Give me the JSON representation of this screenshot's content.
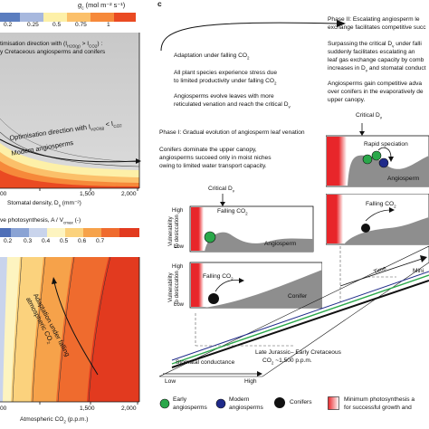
{
  "panel_a": {
    "colorbar_label": "g",
    "colorbar_sub": "c",
    "colorbar_unit": " (mol m⁻² s⁻¹)",
    "colorbar_ticks": [
      "0.2",
      "0.25",
      "0.5",
      "0.75",
      "1"
    ],
    "colors": [
      "#5b7dbf",
      "#a7b8de",
      "#fdf0a8",
      "#fbc06a",
      "#f6893a",
      "#ea4a22"
    ],
    "note_line1": "timisation direction with (I",
    "note_line1_sub": "H2O(g)",
    "note_line1_end": " > I",
    "note_line1_sub2": "CO2",
    "note_line1_tail": ") :",
    "note_line2": "y Cretaceous angiosperms and conifers",
    "arrow_label": "Optimisation direction with I",
    "arrow_label_sub": "H2O(g)",
    "arrow_label_end": " < I",
    "arrow_label_sub2": "CO2",
    "modern_label": "Modern angiosperms",
    "xlabel": "Stomatal density, D",
    "xlabel_sub": "s",
    "xlabel_unit": " (mm⁻²)",
    "xticks": [
      "00",
      "1,500",
      "2,000"
    ]
  },
  "panel_b": {
    "colorbar_label": "ve photosynthesis, A / V",
    "colorbar_sub": "cmax",
    "colorbar_unit": " (-)",
    "colorbar_ticks": [
      "0.2",
      "0.3",
      "0.4",
      "0.5",
      "0.6",
      "0.7"
    ],
    "colors": [
      "#4f6fb7",
      "#8aa3d4",
      "#c9d4ec",
      "#fdf4c0",
      "#fbd27d",
      "#f6a24a",
      "#ef6b2e",
      "#e23a1f"
    ],
    "arrow_label_line1": "Adaptation under falling",
    "arrow_label_line2": "atmospheric CO",
    "arrow_label_sub": "2",
    "xlabel": "Atmospheric CO",
    "xlabel_sub": "2",
    "xlabel_unit": " (p.p.m.)",
    "xticks": [
      "00",
      "1,500",
      "2,000"
    ]
  },
  "panel_c": {
    "letter": "c",
    "adaptation_line1": "Adaptation under falling CO",
    "adaptation_sub": "2",
    "stress_line1": "All plant species experience stress due",
    "stress_line2": "to limited productivity under falling CO",
    "stress_sub": "2",
    "angio_line1": "Angiosperms evolve leaves with more",
    "angio_line2": "reticulated venation and reach the critical D",
    "angio_sub": "v",
    "phase2_line1": "Phase II: Escalating angiosperm le",
    "phase2_line2": "exchange facilitates competitive succ",
    "surpass_line1": "Surpassing the critical D",
    "surpass_sub": "v",
    "surpass_line1_end": " under falli",
    "surpass_line2": "suddenly facilitates escalating an",
    "surpass_line3": "leaf gas exchange capacity by comb",
    "surpass_line4": "increases in D",
    "surpass_sub4": "v",
    "surpass_line4_end": " and stomatal conduct",
    "gain_line1": "Angiosperms gain competitive adva",
    "gain_line2": "over conifers in the evaporatively de",
    "gain_line3": "upper canopy.",
    "phase1": "Phase I: Gradual evolution of angiosperm leaf venation",
    "conifer_line1": "Conifers dominate the upper canopy,",
    "conifer_line2": "angiosperms succeed only in moist niches",
    "conifer_line3": "owing to limited water transport capacity.",
    "critical_dv_top": "Critical D",
    "critical_dv_top_sub": "v",
    "rapid_speciation": "Rapid speciation",
    "angiosperm_box": "Angiosperm",
    "falling_co2": "Falling CO",
    "falling_co2_sub": "2",
    "critical_dv_left": "Critical D",
    "critical_dv_left_sub": "v",
    "y_high": "High",
    "y_low": "Low",
    "y_label_line1": "Vulnerability",
    "y_label_line2": "to desiccation",
    "angiosperm_inline": "Angiosperm",
    "conifer_inline": "Conifer",
    "time_label": "Time",
    "mini_label": "Mini",
    "late_jurassic_line1": "Late Jurassic– Early Cretaceous",
    "late_jurassic_line2": "CO",
    "late_jurassic_sub": "2",
    "late_jurassic_end": " ~1,500 p.p.m.",
    "x_axis_label": "Stomatal conductance",
    "x_low": "Low",
    "x_high": "High",
    "colors": {
      "angio_fill": "#8e8e8e",
      "red": "#e8262a",
      "green": "#2aa84a",
      "navy": "#1f2a8a",
      "black": "#111111"
    }
  },
  "legend": {
    "early_line1": "Early",
    "early_line2": "angiosperms",
    "modern_line1": "Modern",
    "modern_line2": "angiosperms",
    "conifers": "Conifers",
    "min_line1": "Minimum photosynthesis a",
    "min_line2": "for successful growth and"
  }
}
